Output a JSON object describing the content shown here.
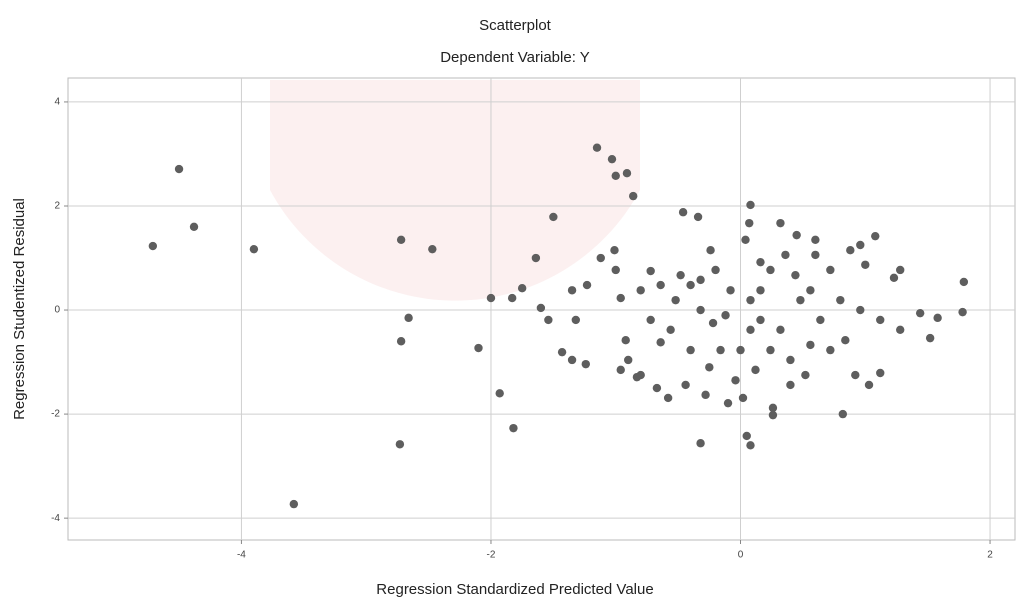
{
  "chart_data": {
    "type": "scatter",
    "title": "Scatterplot",
    "subtitle": "Dependent Variable: Y",
    "x_label": "Regression Standardized Predicted Value",
    "y_label": "Regression Studentized Residual",
    "color": "#5e5e5e",
    "grid": true,
    "xlim": [
      -5.39,
      2.2
    ],
    "ylim": [
      -4.42,
      4.46
    ],
    "xticks": [
      -4,
      -2,
      0,
      2
    ],
    "yticks": [
      -4,
      -2,
      0,
      2,
      4
    ],
    "x": [
      -4.71,
      -4.5,
      -4.38,
      -3.9,
      -3.58,
      -2.72,
      -2.66,
      -2.72,
      -2.73,
      -2.47,
      -2.1,
      -2.0,
      -1.93,
      -1.82,
      -1.83,
      -1.75,
      -1.64,
      -1.6,
      -1.54,
      -1.5,
      -1.43,
      -1.35,
      -1.32,
      -1.35,
      -1.24,
      -1.23,
      -1.15,
      -1.03,
      -1.0,
      -0.91,
      -0.86,
      -1.12,
      -1.01,
      -0.96,
      -0.9,
      -0.83,
      -0.72,
      -0.67,
      -0.64,
      -0.58,
      -0.52,
      -0.46,
      -0.34,
      -0.32,
      -0.25,
      -0.22,
      -0.1,
      0.02,
      0.05,
      0.08,
      0.08,
      0.07,
      0.04,
      0.16,
      0.26,
      0.26,
      0.32,
      0.45,
      0.6,
      0.82,
      0.92,
      1.0,
      1.08,
      1.23,
      1.28,
      1.44,
      1.52,
      1.58,
      1.79,
      1.78,
      1.12,
      1.03,
      0.52,
      -0.16,
      -0.32,
      -0.4,
      0.16,
      0.32,
      0.48,
      0.64,
      0.8,
      0.96,
      1.12,
      1.28,
      0.72,
      0.88,
      0.96,
      0.08,
      0.0,
      -0.08,
      -0.2,
      0.24,
      0.4,
      0.56,
      0.72,
      0.84,
      0.12,
      -0.04,
      -0.4,
      -0.56,
      -0.72,
      -0.8,
      -0.64,
      0.16,
      -0.12,
      0.44,
      0.56,
      0.24,
      0.36,
      0.6,
      0.08,
      -0.32,
      -0.48,
      -0.24,
      -1.0,
      -0.92,
      -0.8,
      -0.96,
      -0.44,
      -0.28,
      0.4
    ],
    "values": [
      1.23,
      2.71,
      1.6,
      1.17,
      -3.73,
      1.35,
      -0.15,
      -0.6,
      -2.58,
      1.17,
      -0.73,
      0.23,
      -1.6,
      -2.27,
      0.23,
      0.42,
      1.0,
      0.04,
      -0.19,
      1.79,
      -0.81,
      -0.96,
      -0.19,
      0.38,
      -1.04,
      0.48,
      3.12,
      2.9,
      2.58,
      2.63,
      2.19,
      1.0,
      1.15,
      0.23,
      -0.96,
      -1.29,
      0.75,
      -1.5,
      -0.62,
      -1.69,
      0.19,
      1.88,
      1.79,
      -2.56,
      -1.1,
      -0.25,
      -1.79,
      -1.69,
      -2.42,
      -2.6,
      2.02,
      1.67,
      1.35,
      0.92,
      -1.88,
      -2.02,
      1.67,
      1.44,
      1.35,
      -2.0,
      -1.25,
      0.87,
      1.42,
      0.62,
      0.77,
      -0.06,
      -0.54,
      -0.15,
      0.54,
      -0.04,
      -1.21,
      -1.44,
      -1.25,
      -0.77,
      0.0,
      0.48,
      0.38,
      -0.38,
      0.19,
      -0.19,
      0.19,
      0.0,
      -0.19,
      -0.38,
      0.77,
      1.15,
      1.25,
      -0.38,
      -0.77,
      0.38,
      0.77,
      -0.77,
      -0.96,
      -0.67,
      -0.77,
      -0.58,
      -1.15,
      -1.35,
      -0.77,
      -0.38,
      -0.19,
      0.38,
      0.48,
      -0.19,
      -0.1,
      0.67,
      0.38,
      0.77,
      1.06,
      1.06,
      0.19,
      0.58,
      0.67,
      1.15,
      0.77,
      -0.58,
      -1.25,
      -1.15,
      -1.44,
      -1.63,
      -1.44
    ]
  }
}
